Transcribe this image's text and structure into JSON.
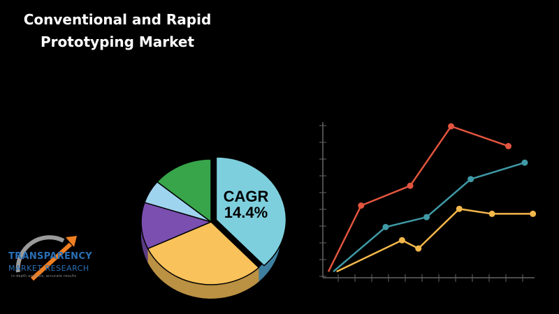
{
  "title_lines": [
    "Conventional and Rapid",
    "Prototyping Market"
  ],
  "cagr": {
    "label": "CAGR",
    "value": "14.4%"
  },
  "logo": {
    "name_line1": "TRANSPARENCY",
    "name_line2": "MARKET RESEARCH",
    "tagline": "in-depth analysis, accurate results"
  },
  "colors": {
    "background": "#000000",
    "pie_main": "#7ecfdd",
    "pie_main_side": "#3e7fa0",
    "pie_orange": "#f9c25a",
    "pie_purple": "#7a4fb0",
    "pie_lightblue": "#9fd4ef",
    "pie_green": "#38a54b",
    "line_red": "#e2553f",
    "line_teal": "#3f9aa6",
    "line_yellow": "#f3b84b",
    "axis": "#666666"
  },
  "chart_data": [
    {
      "type": "pie",
      "values": [
        38,
        30,
        12,
        6,
        14
      ],
      "colors": [
        "#7ecfdd",
        "#f9c25a",
        "#7a4fb0",
        "#9fd4ef",
        "#38a54b"
      ],
      "annotation": "CAGR 14.4%"
    },
    {
      "type": "line",
      "x": [
        0,
        1,
        2,
        3,
        4,
        5,
        6,
        7,
        8,
        9,
        10,
        11,
        12
      ],
      "ylim": [
        0,
        9
      ],
      "series": [
        {
          "color": "#e2553f",
          "points": [
            [
              0,
              0.2
            ],
            [
              2,
              4.2
            ],
            [
              5,
              5.4
            ],
            [
              7.5,
              9.0
            ],
            [
              11,
              7.8
            ]
          ]
        },
        {
          "color": "#3f9aa6",
          "points": [
            [
              0.3,
              0.2
            ],
            [
              3.5,
              2.9
            ],
            [
              6,
              3.5
            ],
            [
              8.7,
              5.8
            ],
            [
              12,
              6.8
            ]
          ]
        },
        {
          "color": "#f3b84b",
          "points": [
            [
              0.5,
              0.2
            ],
            [
              4.5,
              2.1
            ],
            [
              5.5,
              1.6
            ],
            [
              8,
              4.0
            ],
            [
              10,
              3.7
            ],
            [
              12.5,
              3.7
            ]
          ]
        }
      ]
    }
  ]
}
